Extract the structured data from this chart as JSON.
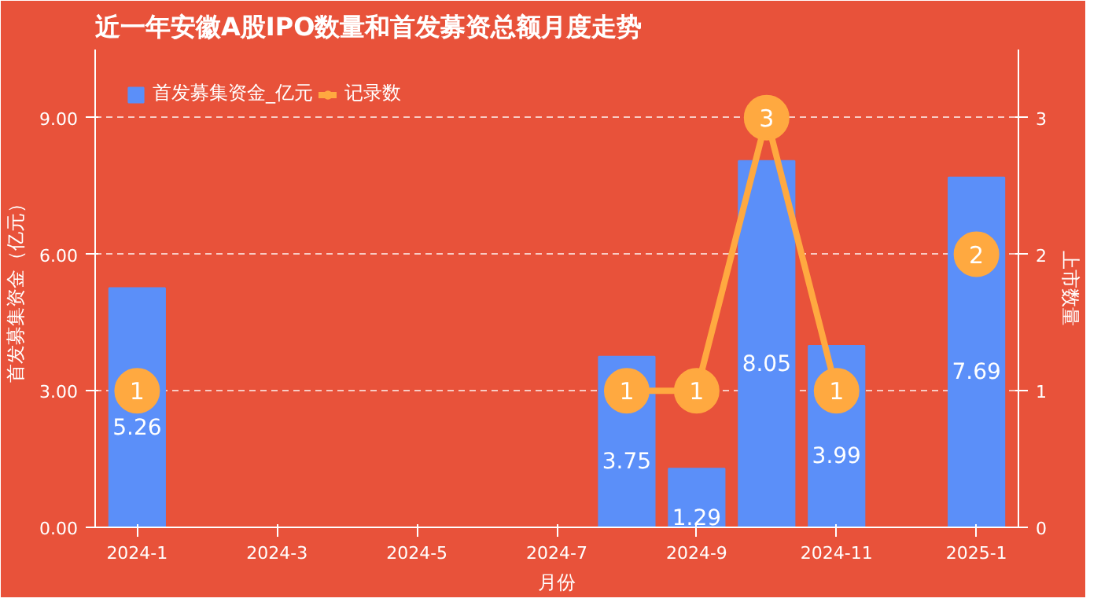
{
  "chart_data": {
    "type": "bar",
    "title": "近一年安徽A股IPO数量和首发募资总额月度走势",
    "xlabel": "月份",
    "ylabel": "首发募集资金（亿元）",
    "y2label": "上市数量",
    "categories": [
      "2024-1",
      null,
      "2024-3",
      null,
      "2024-5",
      null,
      "2024-7",
      null,
      "2024-9",
      null,
      "2024-11",
      null,
      "2025-1"
    ],
    "series": [
      {
        "name": "首发募集资金_亿元",
        "color": "#5b8ff9",
        "values": [
          5.26,
          null,
          null,
          null,
          null,
          null,
          null,
          3.75,
          1.29,
          8.05,
          3.99,
          null,
          7.69
        ]
      },
      {
        "name": "记录数",
        "color": "#ffa940",
        "type": "line",
        "axis": "y2",
        "values": [
          1,
          null,
          null,
          null,
          null,
          null,
          null,
          1,
          1,
          3,
          1,
          null,
          2
        ]
      }
    ],
    "ylim": [
      0,
      10.5
    ],
    "yticks": [
      {
        "value": 0,
        "label": "0.00"
      },
      {
        "value": 3,
        "label": "3.00"
      },
      {
        "value": 6,
        "label": "6.00"
      },
      {
        "value": 9,
        "label": "9.00"
      }
    ],
    "y2lim": [
      0,
      3.5
    ],
    "y2ticks": [
      0,
      1,
      2,
      3
    ],
    "grid": "y",
    "legend": "top left",
    "marker": "circle",
    "data_labels": true
  }
}
